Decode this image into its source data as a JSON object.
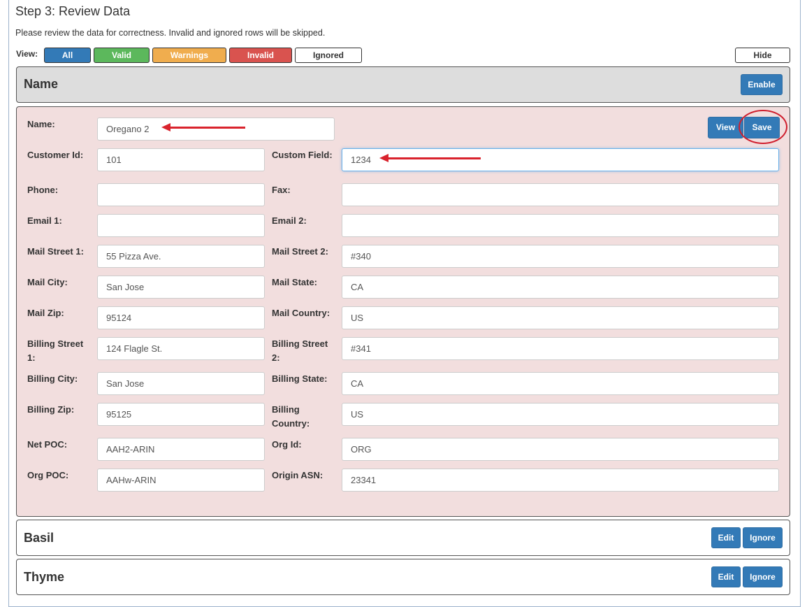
{
  "header": {
    "title": "Step 3: Review Data",
    "description": "Please review the data for correctness. Invalid and ignored rows will be skipped."
  },
  "filter": {
    "label": "View:",
    "buttons": [
      {
        "label": "All",
        "color": "#337ab7"
      },
      {
        "label": "Valid",
        "color": "#5cb85c"
      },
      {
        "label": "Warnings",
        "color": "#f0ad4e"
      },
      {
        "label": "Invalid",
        "color": "#d9534f"
      },
      {
        "label": "Ignored",
        "color": "#ffffff"
      }
    ],
    "hide_label": "Hide"
  },
  "header_panel": {
    "title": "Name",
    "enable_label": "Enable"
  },
  "edit_panel": {
    "view_label": "View",
    "save_label": "Save",
    "name_label": "Name:",
    "name_value": "Oregano 2",
    "rows": [
      [
        {
          "label": "Customer Id:",
          "value": "101"
        },
        {
          "label": "Custom Field:",
          "value": "1234",
          "focused": true
        }
      ],
      [
        {
          "label": "Phone:",
          "value": ""
        },
        {
          "label": "Fax:",
          "value": ""
        }
      ],
      [
        {
          "label": "Email 1:",
          "value": ""
        },
        {
          "label": "Email 2:",
          "value": ""
        }
      ],
      [
        {
          "label": "Mail Street 1:",
          "value": "55 Pizza Ave."
        },
        {
          "label": "Mail Street 2:",
          "value": "#340"
        }
      ],
      [
        {
          "label": "Mail City:",
          "value": "San Jose"
        },
        {
          "label": "Mail State:",
          "value": "CA"
        }
      ],
      [
        {
          "label": "Mail Zip:",
          "value": "95124"
        },
        {
          "label": "Mail Country:",
          "value": "US"
        }
      ],
      [
        {
          "label": "Billing Street 1:",
          "value": "124 Flagle St."
        },
        {
          "label": "Billing Street 2:",
          "value": "#341"
        }
      ],
      [
        {
          "label": "Billing City:",
          "value": "San Jose"
        },
        {
          "label": "Billing State:",
          "value": "CA"
        }
      ],
      [
        {
          "label": "Billing Zip:",
          "value": "95125"
        },
        {
          "label": "Billing Country:",
          "value": "US"
        }
      ],
      [
        {
          "label": "Net POC:",
          "value": "AAH2-ARIN"
        },
        {
          "label": "Org Id:",
          "value": "ORG"
        }
      ],
      [
        {
          "label": "Org POC:",
          "value": "AAHw-ARIN"
        },
        {
          "label": "Origin ASN:",
          "value": "23341"
        }
      ]
    ]
  },
  "records": [
    {
      "title": "Basil",
      "edit_label": "Edit",
      "ignore_label": "Ignore"
    },
    {
      "title": "Thyme",
      "edit_label": "Edit",
      "ignore_label": "Ignore"
    }
  ],
  "annotation_color": "#d9232d"
}
